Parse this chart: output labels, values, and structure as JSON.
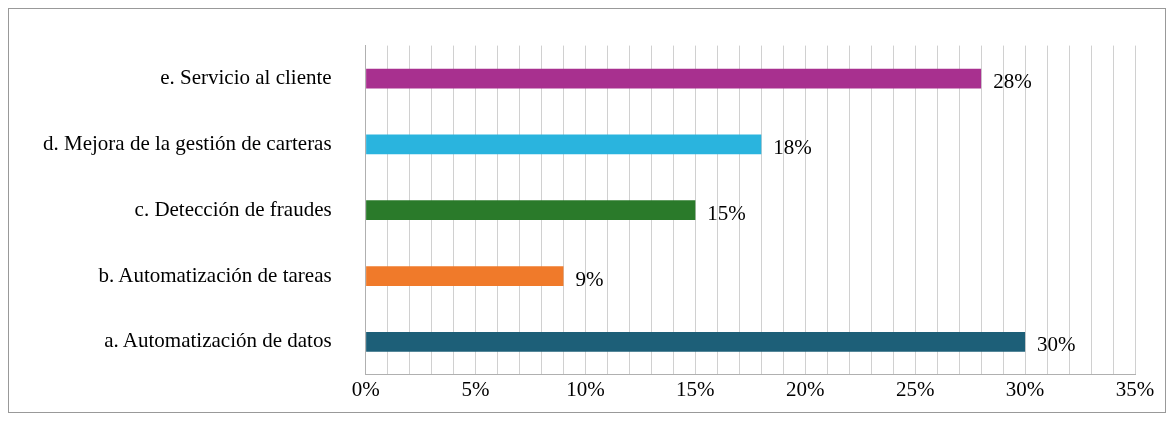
{
  "chart_data": {
    "type": "bar",
    "orientation": "horizontal",
    "categories": [
      "e. Servicio al cliente",
      "d. Mejora de la gestión de carteras",
      "c. Detección de fraudes",
      "b. Automatización de tareas",
      "a. Automatización de datos"
    ],
    "values": [
      28,
      18,
      15,
      9,
      30
    ],
    "colors": [
      "#a8308f",
      "#2ab4de",
      "#2a7a2a",
      "#f07a2a",
      "#1d5f78"
    ],
    "value_labels": [
      "28%",
      "18%",
      "15%",
      "9%",
      "30%"
    ],
    "xlim": [
      0,
      35
    ],
    "xticks": [
      {
        "value": 0,
        "label": "0%"
      },
      {
        "value": 1,
        "label": null
      },
      {
        "value": 2,
        "label": null
      },
      {
        "value": 3,
        "label": null
      },
      {
        "value": 4,
        "label": null
      },
      {
        "value": 5,
        "label": "5%"
      },
      {
        "value": 6,
        "label": null
      },
      {
        "value": 7,
        "label": null
      },
      {
        "value": 8,
        "label": null
      },
      {
        "value": 9,
        "label": null
      },
      {
        "value": 10,
        "label": "10%"
      },
      {
        "value": 11,
        "label": null
      },
      {
        "value": 12,
        "label": null
      },
      {
        "value": 13,
        "label": null
      },
      {
        "value": 14,
        "label": null
      },
      {
        "value": 15,
        "label": "15%"
      },
      {
        "value": 16,
        "label": null
      },
      {
        "value": 17,
        "label": null
      },
      {
        "value": 18,
        "label": null
      },
      {
        "value": 19,
        "label": null
      },
      {
        "value": 20,
        "label": "20%"
      },
      {
        "value": 21,
        "label": null
      },
      {
        "value": 22,
        "label": null
      },
      {
        "value": 23,
        "label": null
      },
      {
        "value": 24,
        "label": null
      },
      {
        "value": 25,
        "label": "25%"
      },
      {
        "value": 26,
        "label": null
      },
      {
        "value": 27,
        "label": null
      },
      {
        "value": 28,
        "label": null
      },
      {
        "value": 29,
        "label": null
      },
      {
        "value": 30,
        "label": "30%"
      },
      {
        "value": 31,
        "label": null
      },
      {
        "value": 32,
        "label": null
      },
      {
        "value": 33,
        "label": null
      },
      {
        "value": 34,
        "label": null
      },
      {
        "value": 35,
        "label": "35%"
      }
    ],
    "grid": "x"
  }
}
